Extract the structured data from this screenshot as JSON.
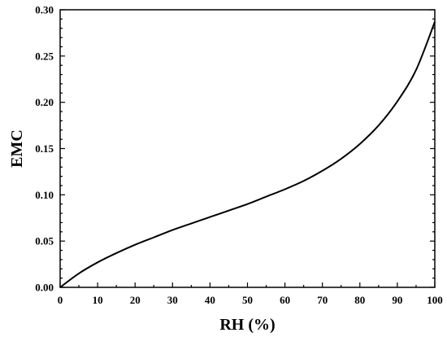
{
  "chart_data": {
    "type": "line",
    "title": "",
    "xlabel": "RH (%)",
    "ylabel": "EMC",
    "xlim": [
      0,
      100
    ],
    "ylim": [
      0,
      0.3
    ],
    "grid": false,
    "xticks": [
      "0",
      "10",
      "20",
      "30",
      "40",
      "50",
      "60",
      "70",
      "80",
      "90",
      "100"
    ],
    "yticks": [
      "0.00",
      "0.05",
      "0.10",
      "0.15",
      "0.20",
      "0.25",
      "0.30"
    ],
    "series": [
      {
        "color": "#000000",
        "x": [
          0,
          5,
          10,
          15,
          20,
          25,
          30,
          35,
          40,
          45,
          50,
          55,
          60,
          65,
          70,
          75,
          80,
          85,
          90,
          95,
          100
        ],
        "y": [
          0.0,
          0.015,
          0.027,
          0.037,
          0.046,
          0.054,
          0.062,
          0.069,
          0.076,
          0.083,
          0.09,
          0.098,
          0.106,
          0.115,
          0.126,
          0.139,
          0.155,
          0.175,
          0.201,
          0.235,
          0.287
        ]
      }
    ]
  }
}
